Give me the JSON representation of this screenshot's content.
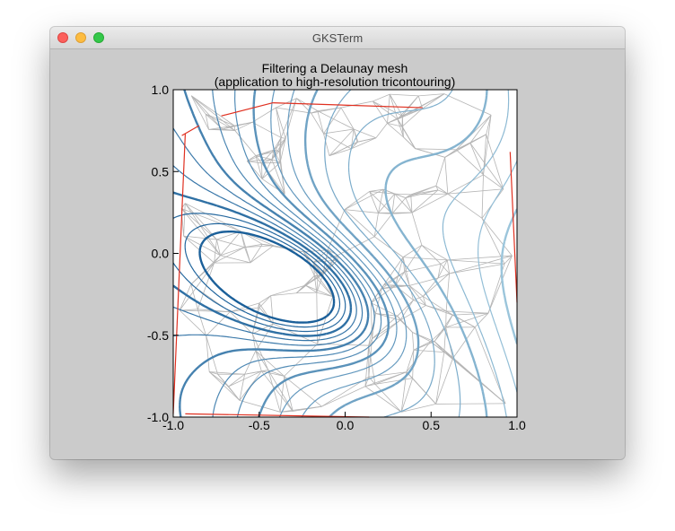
{
  "window": {
    "title": "GKSTerm",
    "controls": {
      "close": "close-button",
      "minimize": "minimize-button",
      "zoom": "zoom-button"
    }
  },
  "chart_data": {
    "type": "contour",
    "title": "Filtering a Delaunay mesh",
    "subtitle": "(application to high-resolution tricontouring)",
    "xlim": [
      -1.0,
      1.0
    ],
    "ylim": [
      -1.0,
      1.0
    ],
    "xticks": [
      "-1.0",
      "-0.5",
      "0.0",
      "0.5",
      "1.0"
    ],
    "yticks": [
      "1.0",
      "0.5",
      "0.0",
      "-0.5",
      "-1.0"
    ],
    "grid": false,
    "colors": {
      "mesh": "#b4b4b4",
      "masked_edges": "#e03020",
      "contour_dark": "#1a5f99",
      "contour_light": "#a9d0e2",
      "axes": "#000000",
      "plot_background": "#ffffff",
      "window_background": "#cbcbcb"
    }
  }
}
